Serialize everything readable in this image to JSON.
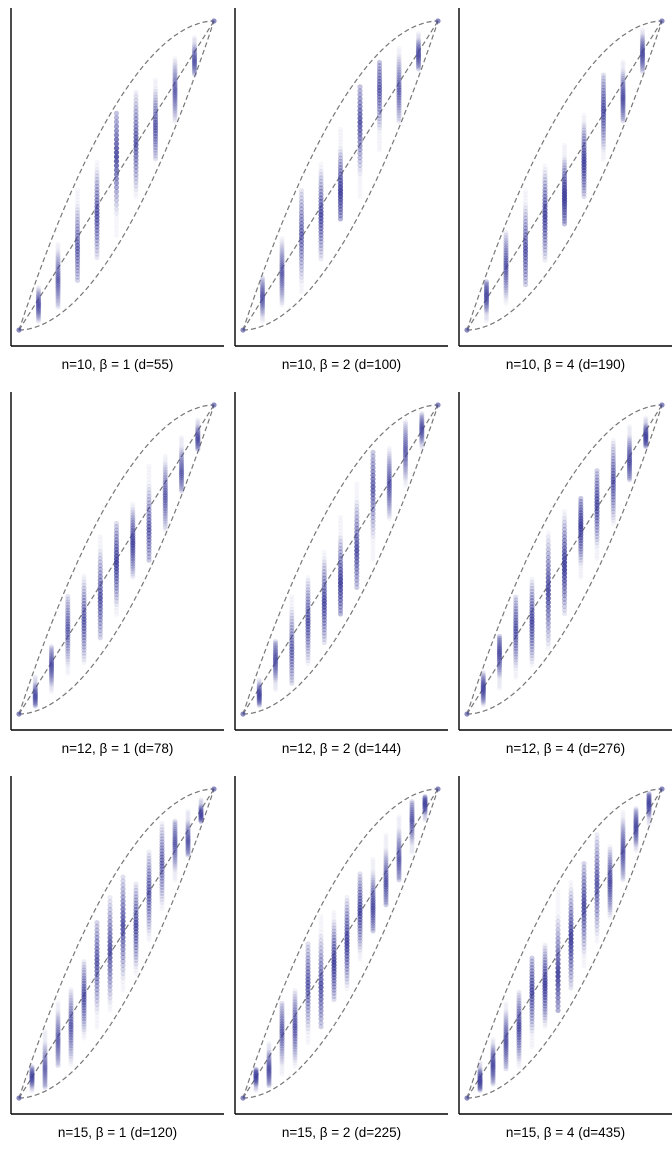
{
  "figure": {
    "accent_color": "#3f3f9b",
    "envelope_color": "#777777",
    "axis_color": "#000000",
    "grid": false,
    "legend": "none"
  },
  "chart_data": [
    {
      "type": "scatter",
      "n": 10,
      "beta": 1,
      "d": 55,
      "caption": "n=10,  β = 1  (d=55)",
      "xlim": [
        0,
        10
      ],
      "ylim": [
        0,
        55
      ]
    },
    {
      "type": "scatter",
      "n": 10,
      "beta": 2,
      "d": 100,
      "caption": "n=10,  β = 2  (d=100)",
      "xlim": [
        0,
        10
      ],
      "ylim": [
        0,
        100
      ]
    },
    {
      "type": "scatter",
      "n": 10,
      "beta": 4,
      "d": 190,
      "caption": "n=10,  β = 4  (d=190)",
      "xlim": [
        0,
        10
      ],
      "ylim": [
        0,
        190
      ]
    },
    {
      "type": "scatter",
      "n": 12,
      "beta": 1,
      "d": 78,
      "caption": "n=12,  β = 1  (d=78)",
      "xlim": [
        0,
        12
      ],
      "ylim": [
        0,
        78
      ]
    },
    {
      "type": "scatter",
      "n": 12,
      "beta": 2,
      "d": 144,
      "caption": "n=12,  β = 2  (d=144)",
      "xlim": [
        0,
        12
      ],
      "ylim": [
        0,
        144
      ]
    },
    {
      "type": "scatter",
      "n": 12,
      "beta": 4,
      "d": 276,
      "caption": "n=12,  β = 4  (d=276)",
      "xlim": [
        0,
        12
      ],
      "ylim": [
        0,
        276
      ]
    },
    {
      "type": "scatter",
      "n": 15,
      "beta": 1,
      "d": 120,
      "caption": "n=15,  β = 1  (d=120)",
      "xlim": [
        0,
        15
      ],
      "ylim": [
        0,
        120
      ]
    },
    {
      "type": "scatter",
      "n": 15,
      "beta": 2,
      "d": 225,
      "caption": "n=15,  β = 2  (d=225)",
      "xlim": [
        0,
        15
      ],
      "ylim": [
        0,
        225
      ]
    },
    {
      "type": "scatter",
      "n": 15,
      "beta": 4,
      "d": 435,
      "caption": "n=15,  β = 4  (d=435)",
      "xlim": [
        0,
        15
      ],
      "ylim": [
        0,
        435
      ]
    }
  ]
}
